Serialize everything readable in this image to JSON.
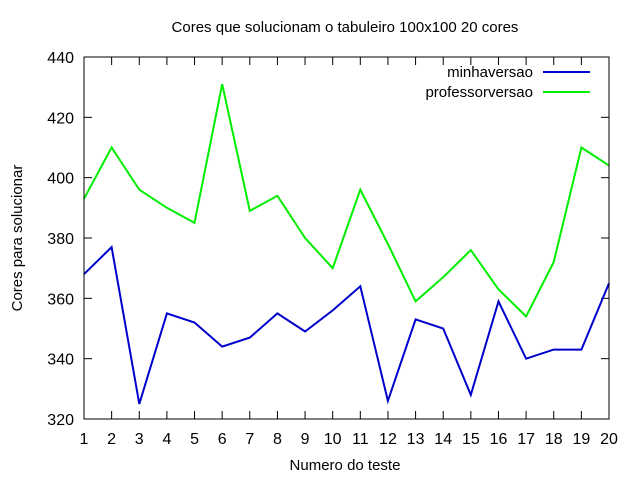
{
  "chart_data": {
    "type": "line",
    "title": "Cores que solucionam o tabuleiro 100x100 20 cores",
    "xlabel": "Numero do teste",
    "ylabel": "Cores para solucionar",
    "xlim": [
      1,
      20
    ],
    "ylim": [
      320,
      440
    ],
    "x": [
      1,
      2,
      3,
      4,
      5,
      6,
      7,
      8,
      9,
      10,
      11,
      12,
      13,
      14,
      15,
      16,
      17,
      18,
      19,
      20
    ],
    "xticks": [
      "1",
      "2",
      "3",
      "4",
      "5",
      "6",
      "7",
      "8",
      "9",
      "10",
      "11",
      "12",
      "13",
      "14",
      "15",
      "16",
      "17",
      "18",
      "19",
      "20"
    ],
    "yticks": [
      320,
      340,
      360,
      380,
      400,
      420,
      440
    ],
    "grid": false,
    "legend_position": "top-right",
    "series": [
      {
        "name": "minhaversao",
        "color": "#0000cc",
        "values": [
          368,
          377,
          325,
          355,
          352,
          344,
          347,
          355,
          349,
          356,
          364,
          326,
          353,
          350,
          328,
          359,
          340,
          343,
          343,
          365
        ]
      },
      {
        "name": "professorversao",
        "color": "#00ee00",
        "values": [
          393,
          410,
          396,
          390,
          385,
          431,
          389,
          394,
          380,
          370,
          396,
          378,
          359,
          367,
          376,
          363,
          354,
          372,
          410,
          404
        ]
      }
    ]
  }
}
